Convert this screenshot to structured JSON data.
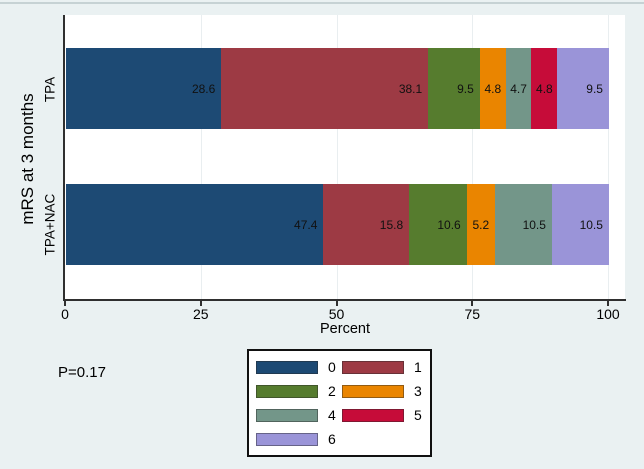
{
  "figure": {
    "background_color": "#eaf1f2",
    "plot_background_color": "#ffffff",
    "axis_color": "#2f2f2f",
    "gridline_color": "#e9eef0",
    "top_border_color": "#c6d2d4"
  },
  "chart_data": {
    "type": "bar",
    "orientation": "horizontal",
    "stacked": true,
    "categories": [
      "TPA",
      "TPA+NAC"
    ],
    "category_axis_title": "mRS at 3 months",
    "value_axis_title": "Percent",
    "x_ticks": [
      "0",
      "25",
      "50",
      "75",
      "100"
    ],
    "xlim": [
      0,
      100
    ],
    "grid": true,
    "bar_labels_visible": true,
    "series": [
      {
        "name": "0",
        "color": "#1d4a74",
        "values": [
          28.6,
          47.4
        ]
      },
      {
        "name": "1",
        "color": "#9d3a44",
        "values": [
          38.1,
          15.8
        ]
      },
      {
        "name": "2",
        "color": "#567c2e",
        "values": [
          9.5,
          10.6
        ]
      },
      {
        "name": "3",
        "color": "#ea8500",
        "values": [
          4.8,
          5.2
        ]
      },
      {
        "name": "4",
        "color": "#739689",
        "values": [
          4.7,
          10.5
        ]
      },
      {
        "name": "5",
        "color": "#c60c39",
        "values": [
          4.8,
          0
        ]
      },
      {
        "name": "6",
        "color": "#9a94d8",
        "values": [
          9.5,
          10.5
        ]
      }
    ],
    "legend": {
      "position": "bottom-center",
      "columns": 2,
      "entries": [
        "0",
        "1",
        "2",
        "3",
        "4",
        "5",
        "6"
      ]
    },
    "annotation": "P=0.17"
  }
}
